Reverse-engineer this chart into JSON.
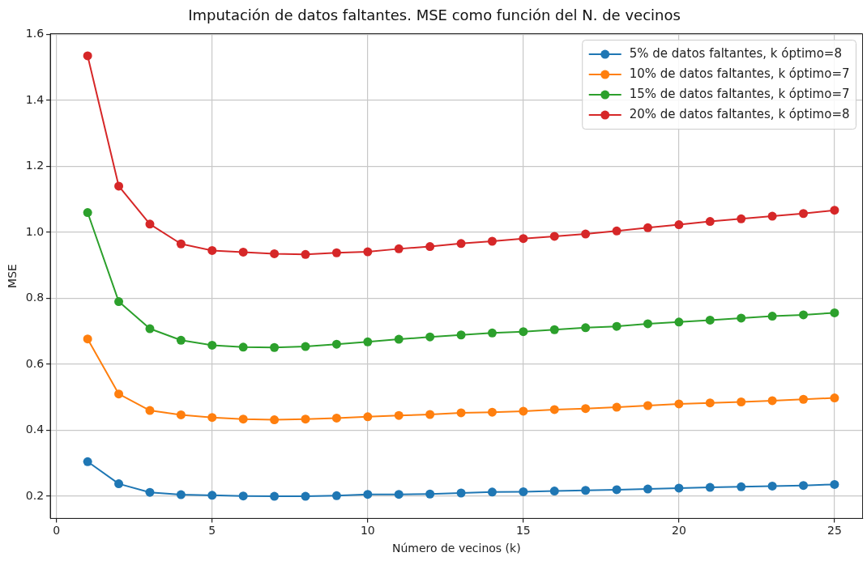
{
  "chart_data": {
    "type": "line",
    "title": "Imputación de datos faltantes. MSE como función del N. de vecinos",
    "xlabel": "Número de vecinos (k)",
    "ylabel": "MSE",
    "x": [
      1,
      2,
      3,
      4,
      5,
      6,
      7,
      8,
      9,
      10,
      11,
      12,
      13,
      14,
      15,
      16,
      17,
      18,
      19,
      20,
      21,
      22,
      23,
      24,
      25
    ],
    "series": [
      {
        "name": "5% de datos faltantes, k óptimo=8",
        "color": "#1f77b4",
        "values": [
          0.305,
          0.238,
          0.212,
          0.205,
          0.203,
          0.201,
          0.2,
          0.2,
          0.202,
          0.206,
          0.206,
          0.207,
          0.21,
          0.213,
          0.214,
          0.216,
          0.218,
          0.22,
          0.222,
          0.225,
          0.227,
          0.229,
          0.231,
          0.233,
          0.236
        ]
      },
      {
        "name": "10% de datos faltantes, k óptimo=7",
        "color": "#ff7f0e",
        "values": [
          0.677,
          0.51,
          0.46,
          0.447,
          0.439,
          0.434,
          0.432,
          0.434,
          0.437,
          0.441,
          0.445,
          0.448,
          0.453,
          0.455,
          0.458,
          0.463,
          0.466,
          0.47,
          0.475,
          0.48,
          0.483,
          0.486,
          0.49,
          0.494,
          0.498
        ]
      },
      {
        "name": "15% de datos faltantes, k óptimo=7",
        "color": "#2ca02c",
        "values": [
          1.06,
          0.79,
          0.708,
          0.673,
          0.658,
          0.652,
          0.651,
          0.654,
          0.661,
          0.668,
          0.676,
          0.683,
          0.689,
          0.695,
          0.699,
          0.705,
          0.711,
          0.715,
          0.723,
          0.728,
          0.734,
          0.74,
          0.746,
          0.75,
          0.756
        ]
      },
      {
        "name": "20% de datos faltantes, k óptimo=8",
        "color": "#d62728",
        "values": [
          1.535,
          1.14,
          1.025,
          0.965,
          0.945,
          0.94,
          0.935,
          0.933,
          0.938,
          0.941,
          0.95,
          0.957,
          0.966,
          0.973,
          0.981,
          0.988,
          0.995,
          1.004,
          1.014,
          1.023,
          1.033,
          1.041,
          1.049,
          1.057,
          1.067
        ]
      }
    ],
    "xlim": [
      -0.2,
      25.9
    ],
    "xticks": [
      0,
      5,
      10,
      15,
      20,
      25
    ],
    "ylim": [
      0.133,
      1.602
    ],
    "yticks": [
      {
        "value": 0.2,
        "label": "0.2"
      },
      {
        "value": 0.4,
        "label": "0.4"
      },
      {
        "value": 0.6,
        "label": "0.6"
      },
      {
        "value": 0.8,
        "label": "0.8"
      },
      {
        "value": 1.0,
        "label": "1.0"
      },
      {
        "value": 1.2,
        "label": "1.2"
      },
      {
        "value": 1.4,
        "label": "1.4"
      },
      {
        "value": 1.6,
        "label": "1.6"
      }
    ],
    "grid": true,
    "legend": "top right",
    "marker": "circle",
    "line_style": "solid"
  }
}
